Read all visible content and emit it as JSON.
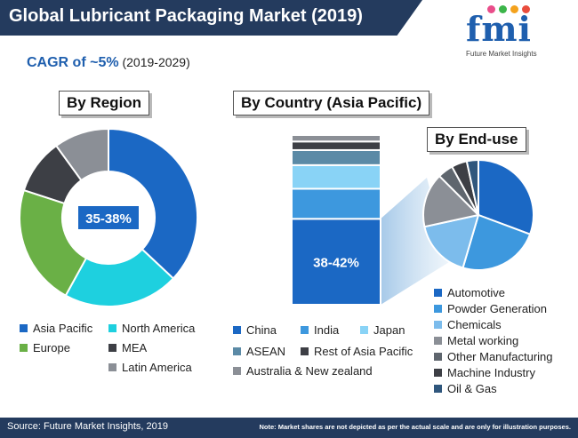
{
  "header": {
    "title": "Global Lubricant Packaging Market (2019)",
    "cagr_main": "CAGR of ~5%",
    "cagr_period": "(2019-2029)"
  },
  "logo": {
    "letters": "fmi",
    "subtitle": "Future Market Insights",
    "dot_colors": [
      "#e94d8a",
      "#3cb54a",
      "#f4a21d",
      "#e94d3d"
    ]
  },
  "sections": {
    "region": "By Region",
    "country": "By Country (Asia Pacific)",
    "enduse": "By End-use"
  },
  "chart_data": [
    {
      "type": "pie",
      "variant": "donut",
      "title": "By Region",
      "center_label": "35-38%",
      "categories": [
        "Asia Pacific",
        "North America",
        "Europe",
        "MEA",
        "Latin America"
      ],
      "values": [
        37,
        21,
        22,
        10,
        10
      ],
      "colors": [
        "#1b68c4",
        "#1ed0df",
        "#6ab046",
        "#3d3f45",
        "#8b8f96"
      ],
      "legend_position": "bottom"
    },
    {
      "type": "bar",
      "variant": "stacked-single",
      "title": "By Country (Asia Pacific)",
      "categories": [
        "China",
        "India",
        "Japan",
        "ASEAN",
        "Rest of Asia Pacific",
        "Australia & New zealand"
      ],
      "values": [
        40,
        14,
        11,
        7,
        4,
        3
      ],
      "colors": [
        "#1b68c4",
        "#3d98de",
        "#89d3f6",
        "#5b8aa6",
        "#3d3f45",
        "#8b8f96"
      ],
      "data_label": "38-42%",
      "legend_position": "bottom"
    },
    {
      "type": "pie",
      "title": "By End-use",
      "categories": [
        "Automotive",
        "Powder Generation",
        "Chemicals",
        "Metal working",
        "Other Manufacturing",
        "Machine Industry",
        "Oil & Gas"
      ],
      "values": [
        27,
        21,
        15,
        14,
        4,
        4,
        3
      ],
      "colors": [
        "#1b68c4",
        "#3d98de",
        "#7cbcec",
        "#8b8f96",
        "#5f666e",
        "#3d3f45",
        "#30577d"
      ],
      "legend_position": "right-bottom"
    }
  ],
  "footer": {
    "source": "Source: Future Market Insights, 2019",
    "note": "Note: Market shares are not depicted as per the actual scale and are only for illustration purposes."
  }
}
